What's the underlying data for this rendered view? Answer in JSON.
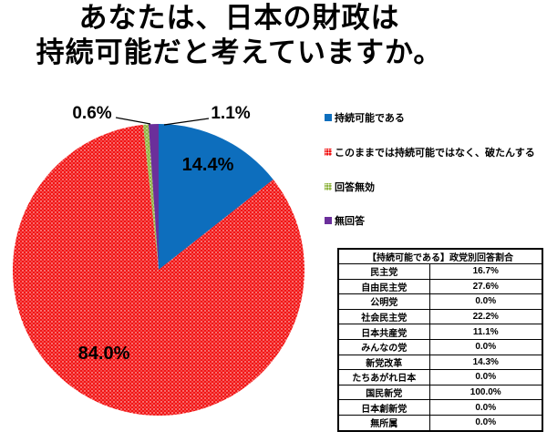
{
  "page": {
    "background": "#ffffff"
  },
  "title": {
    "line1": "あなたは、日本の財政は",
    "line2": "持続可能だと考えていますか。"
  },
  "chart_data": {
    "type": "pie",
    "title": "あなたは、日本の財政は持続可能だと考えていますか。",
    "legend_position": "right",
    "direction": "clockwise",
    "start_angle_deg": 0,
    "slices": [
      {
        "label": "持続可能である",
        "value": 14.4,
        "display": "14.4%",
        "color": "#0d6ebd",
        "pattern": false
      },
      {
        "label": "このままでは持続可能ではなく、破たんする",
        "value": 84.0,
        "display": "84.0%",
        "color": "#f21414",
        "pattern": true
      },
      {
        "label": "回答無効",
        "value": 0.6,
        "display": "0.6%",
        "color": "#8fb440",
        "pattern": true
      },
      {
        "label": "無回答",
        "value": 1.1,
        "display": "1.1%",
        "color": "#6b2f9b",
        "pattern": false
      }
    ]
  },
  "table": {
    "title": "【持続可能である】政党別回答割合",
    "rows": [
      {
        "party": "民主党",
        "value": "16.7%"
      },
      {
        "party": "自由民主党",
        "value": "27.6%"
      },
      {
        "party": "公明党",
        "value": "0.0%"
      },
      {
        "party": "社会民主党",
        "value": "22.2%"
      },
      {
        "party": "日本共産党",
        "value": "11.1%"
      },
      {
        "party": "みんなの党",
        "value": "0.0%"
      },
      {
        "party": "新党改革",
        "value": "14.3%"
      },
      {
        "party": "たちあがれ日本",
        "value": "0.0%"
      },
      {
        "party": "国民新党",
        "value": "100.0%"
      },
      {
        "party": "日本創新党",
        "value": "0.0%"
      },
      {
        "party": "無所属",
        "value": "0.0%"
      }
    ]
  }
}
